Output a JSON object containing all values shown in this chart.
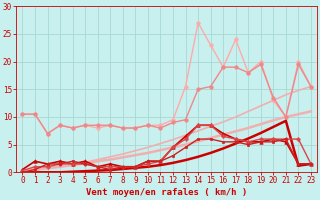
{
  "background_color": "#c8f0ee",
  "grid_color": "#a8d8d4",
  "xlabel": "Vent moyen/en rafales ( km/h )",
  "xlim": [
    -0.5,
    23.5
  ],
  "ylim": [
    0,
    30
  ],
  "xticks": [
    0,
    1,
    2,
    3,
    4,
    5,
    6,
    7,
    8,
    9,
    10,
    11,
    12,
    13,
    14,
    15,
    16,
    17,
    18,
    19,
    20,
    21,
    22,
    23
  ],
  "yticks": [
    0,
    5,
    10,
    15,
    20,
    25,
    30
  ],
  "tick_color": "#cc0000",
  "tick_fontsize": 5.5,
  "label_fontsize": 6.5,
  "label_color": "#cc0000",
  "lines": [
    {
      "x": [
        0,
        1,
        2,
        3,
        4,
        5,
        6,
        7,
        8,
        9,
        10,
        11,
        12,
        13,
        14,
        15,
        16,
        17,
        18,
        19,
        20,
        21,
        22,
        23
      ],
      "y": [
        0.3,
        0.5,
        0.8,
        1.0,
        1.3,
        1.6,
        2.0,
        2.3,
        2.7,
        3.1,
        3.5,
        4.0,
        4.5,
        5.0,
        5.6,
        6.2,
        6.8,
        7.4,
        8.0,
        8.7,
        9.4,
        10.0,
        10.5,
        11.0
      ],
      "color": "#f0b0b0",
      "linewidth": 1.8,
      "marker": null,
      "markersize": 0,
      "zorder": 2
    },
    {
      "x": [
        0,
        1,
        2,
        3,
        4,
        5,
        6,
        7,
        8,
        9,
        10,
        11,
        12,
        13,
        14,
        15,
        16,
        17,
        18,
        19,
        20,
        21,
        22,
        23
      ],
      "y": [
        0.2,
        0.4,
        0.7,
        1.0,
        1.4,
        1.8,
        2.3,
        2.8,
        3.3,
        3.9,
        4.5,
        5.2,
        5.9,
        6.7,
        7.5,
        8.3,
        9.1,
        10.0,
        11.0,
        12.0,
        13.0,
        14.0,
        14.8,
        15.5
      ],
      "color": "#f0b0b0",
      "linewidth": 1.2,
      "marker": null,
      "markersize": 0,
      "zorder": 2
    },
    {
      "x": [
        0,
        1,
        2,
        3,
        4,
        5,
        6,
        7,
        8,
        9,
        10,
        11,
        12,
        13,
        14,
        15,
        16,
        17,
        18,
        19,
        20,
        21,
        22,
        23
      ],
      "y": [
        10.5,
        10.5,
        7.0,
        8.5,
        8.0,
        8.5,
        8.0,
        8.5,
        8.0,
        8.0,
        8.5,
        8.5,
        9.5,
        15.5,
        27.0,
        23.0,
        19.0,
        24.0,
        18.0,
        20.0,
        13.0,
        10.0,
        20.0,
        15.5
      ],
      "color": "#ffaaaa",
      "linewidth": 1.0,
      "marker": "o",
      "markersize": 2.5,
      "zorder": 3
    },
    {
      "x": [
        0,
        1,
        2,
        3,
        4,
        5,
        6,
        7,
        8,
        9,
        10,
        11,
        12,
        13,
        14,
        15,
        16,
        17,
        18,
        19,
        20,
        21,
        22,
        23
      ],
      "y": [
        10.5,
        10.5,
        7.0,
        8.5,
        8.0,
        8.5,
        8.5,
        8.5,
        8.0,
        8.0,
        8.5,
        8.0,
        9.0,
        9.5,
        15.0,
        15.5,
        19.0,
        19.0,
        18.0,
        19.5,
        13.5,
        10.0,
        19.5,
        15.5
      ],
      "color": "#ee8888",
      "linewidth": 1.0,
      "marker": "o",
      "markersize": 2.5,
      "zorder": 3
    },
    {
      "x": [
        0,
        1,
        2,
        3,
        4,
        5,
        6,
        7,
        8,
        9,
        10,
        11,
        12,
        13,
        14,
        15,
        16,
        17,
        18,
        19,
        20,
        21,
        22,
        23
      ],
      "y": [
        0.0,
        0.0,
        0.0,
        0.0,
        0.1,
        0.2,
        0.3,
        0.4,
        0.6,
        0.8,
        1.0,
        1.3,
        1.7,
        2.2,
        2.8,
        3.5,
        4.3,
        5.2,
        6.1,
        7.1,
        8.2,
        9.3,
        1.2,
        1.5
      ],
      "color": "#cc0000",
      "linewidth": 1.8,
      "marker": null,
      "markersize": 0,
      "zorder": 4
    },
    {
      "x": [
        0,
        1,
        2,
        3,
        4,
        5,
        6,
        7,
        8,
        9,
        10,
        11,
        12,
        13,
        14,
        15,
        16,
        17,
        18,
        19,
        20,
        21,
        22,
        23
      ],
      "y": [
        0.5,
        2.0,
        1.5,
        2.0,
        1.5,
        2.0,
        1.0,
        1.5,
        1.0,
        1.0,
        2.0,
        2.0,
        4.5,
        6.5,
        8.5,
        8.5,
        7.0,
        6.0,
        5.5,
        5.5,
        6.0,
        5.5,
        1.5,
        1.5
      ],
      "color": "#cc0000",
      "linewidth": 1.2,
      "marker": "^",
      "markersize": 2.5,
      "zorder": 5
    },
    {
      "x": [
        0,
        1,
        2,
        3,
        4,
        5,
        6,
        7,
        8,
        9,
        10,
        11,
        12,
        13,
        14,
        15,
        16,
        17,
        18,
        19,
        20,
        21,
        22,
        23
      ],
      "y": [
        0.3,
        1.0,
        1.0,
        1.5,
        1.5,
        1.5,
        1.0,
        1.0,
        1.0,
        1.0,
        1.5,
        2.0,
        4.5,
        6.0,
        8.5,
        8.5,
        6.5,
        6.0,
        5.5,
        6.0,
        6.0,
        6.0,
        6.0,
        1.5
      ],
      "color": "#dd4444",
      "linewidth": 1.0,
      "marker": "P",
      "markersize": 2.5,
      "zorder": 5
    },
    {
      "x": [
        0,
        1,
        2,
        3,
        4,
        5,
        6,
        7,
        8,
        9,
        10,
        11,
        12,
        13,
        14,
        15,
        16,
        17,
        18,
        19,
        20,
        21,
        22,
        23
      ],
      "y": [
        0.0,
        0.5,
        1.5,
        1.5,
        2.0,
        1.5,
        1.0,
        0.5,
        1.0,
        1.0,
        2.0,
        2.0,
        3.0,
        4.5,
        6.0,
        6.0,
        5.5,
        5.5,
        5.0,
        5.5,
        5.5,
        6.0,
        1.5,
        1.5
      ],
      "color": "#cc2222",
      "linewidth": 1.0,
      "marker": "s",
      "markersize": 2.0,
      "zorder": 5
    }
  ]
}
